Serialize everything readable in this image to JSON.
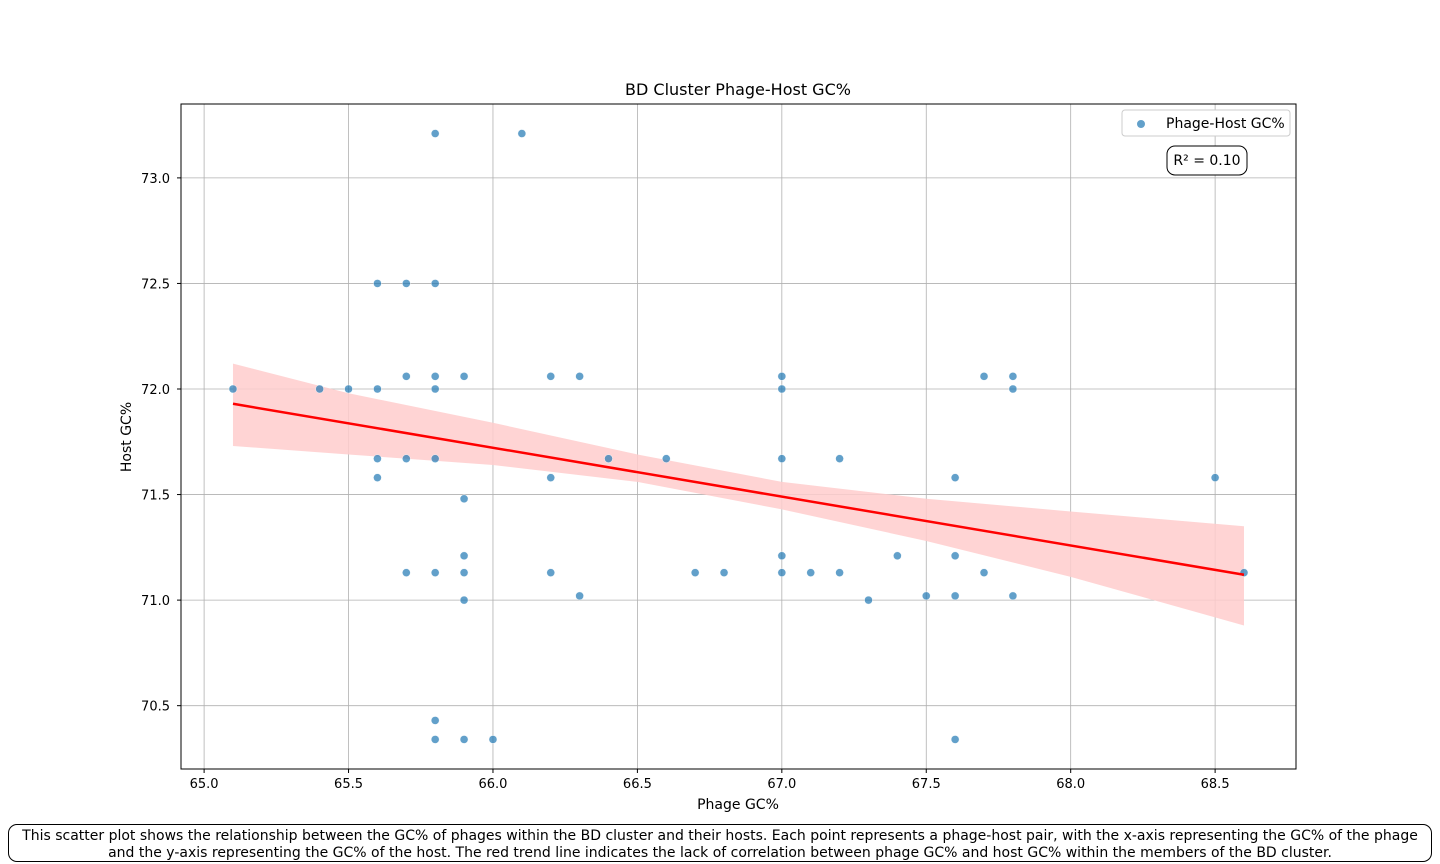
{
  "chart_data": {
    "type": "scatter",
    "title": "BD Cluster Phage-Host GC%",
    "xlabel": "Phage GC%",
    "ylabel": "Host GC%",
    "xlim": [
      64.92,
      68.78
    ],
    "ylim": [
      70.2,
      73.35
    ],
    "xticks": [
      "65.0",
      "65.5",
      "66.0",
      "66.5",
      "67.0",
      "67.5",
      "68.0",
      "68.5"
    ],
    "xtick_values": [
      65.0,
      65.5,
      66.0,
      66.5,
      67.0,
      67.5,
      68.0,
      68.5
    ],
    "yticks": [
      "70.5",
      "71.0",
      "71.5",
      "72.0",
      "72.5",
      "73.0"
    ],
    "ytick_values": [
      70.5,
      71.0,
      71.5,
      72.0,
      72.5,
      73.0
    ],
    "grid": true,
    "legend": {
      "position": "top-right",
      "label": "Phage-Host GC%"
    },
    "annotation": "R² = 0.10",
    "colors": {
      "points": "#1f77b4",
      "trend": "#ff0000",
      "ci_band": "#ffcccc"
    },
    "series": [
      {
        "name": "Phage-Host GC%",
        "points": [
          [
            65.8,
            73.21
          ],
          [
            66.1,
            73.21
          ],
          [
            65.6,
            72.5
          ],
          [
            65.7,
            72.5
          ],
          [
            65.8,
            72.5
          ],
          [
            65.7,
            72.06
          ],
          [
            65.8,
            72.06
          ],
          [
            65.9,
            72.06
          ],
          [
            66.2,
            72.06
          ],
          [
            66.3,
            72.06
          ],
          [
            67.0,
            72.06
          ],
          [
            67.7,
            72.06
          ],
          [
            67.8,
            72.06
          ],
          [
            65.1,
            72.0
          ],
          [
            65.4,
            72.0
          ],
          [
            65.5,
            72.0
          ],
          [
            65.6,
            72.0
          ],
          [
            65.8,
            72.0
          ],
          [
            67.0,
            72.0
          ],
          [
            67.8,
            72.0
          ],
          [
            65.6,
            71.67
          ],
          [
            65.7,
            71.67
          ],
          [
            65.8,
            71.67
          ],
          [
            66.4,
            71.67
          ],
          [
            66.6,
            71.67
          ],
          [
            67.0,
            71.67
          ],
          [
            67.2,
            71.67
          ],
          [
            65.6,
            71.58
          ],
          [
            66.2,
            71.58
          ],
          [
            67.6,
            71.58
          ],
          [
            68.5,
            71.58
          ],
          [
            65.9,
            71.48
          ],
          [
            65.9,
            71.21
          ],
          [
            67.0,
            71.21
          ],
          [
            67.4,
            71.21
          ],
          [
            67.6,
            71.21
          ],
          [
            65.7,
            71.13
          ],
          [
            65.8,
            71.13
          ],
          [
            65.9,
            71.13
          ],
          [
            66.2,
            71.13
          ],
          [
            66.7,
            71.13
          ],
          [
            66.8,
            71.13
          ],
          [
            67.0,
            71.13
          ],
          [
            67.1,
            71.13
          ],
          [
            67.2,
            71.13
          ],
          [
            67.7,
            71.13
          ],
          [
            68.6,
            71.13
          ],
          [
            66.3,
            71.02
          ],
          [
            67.5,
            71.02
          ],
          [
            67.6,
            71.02
          ],
          [
            67.8,
            71.02
          ],
          [
            65.9,
            71.0
          ],
          [
            67.3,
            71.0
          ],
          [
            65.8,
            70.43
          ],
          [
            65.8,
            70.34
          ],
          [
            65.9,
            70.34
          ],
          [
            66.0,
            70.34
          ],
          [
            67.6,
            70.34
          ]
        ]
      }
    ],
    "trend_line": {
      "x": [
        65.1,
        68.6
      ],
      "y": [
        71.93,
        71.12
      ]
    },
    "confidence_band": {
      "x": [
        65.1,
        65.5,
        66.0,
        66.5,
        67.0,
        67.5,
        68.0,
        68.6
      ],
      "upper": [
        72.12,
        71.98,
        71.84,
        71.69,
        71.56,
        71.48,
        71.42,
        71.35
      ],
      "lower": [
        71.73,
        71.69,
        71.64,
        71.56,
        71.43,
        71.28,
        71.11,
        70.88
      ]
    }
  },
  "caption": "This scatter plot shows the relationship between the GC% of phages within the BD cluster and their hosts. Each point represents a phage-host pair, with the x-axis representing the GC% of the phage and the y-axis representing the GC% of the host. The red trend line indicates the lack of correlation between phage GC% and host GC% within the members of the BD cluster."
}
